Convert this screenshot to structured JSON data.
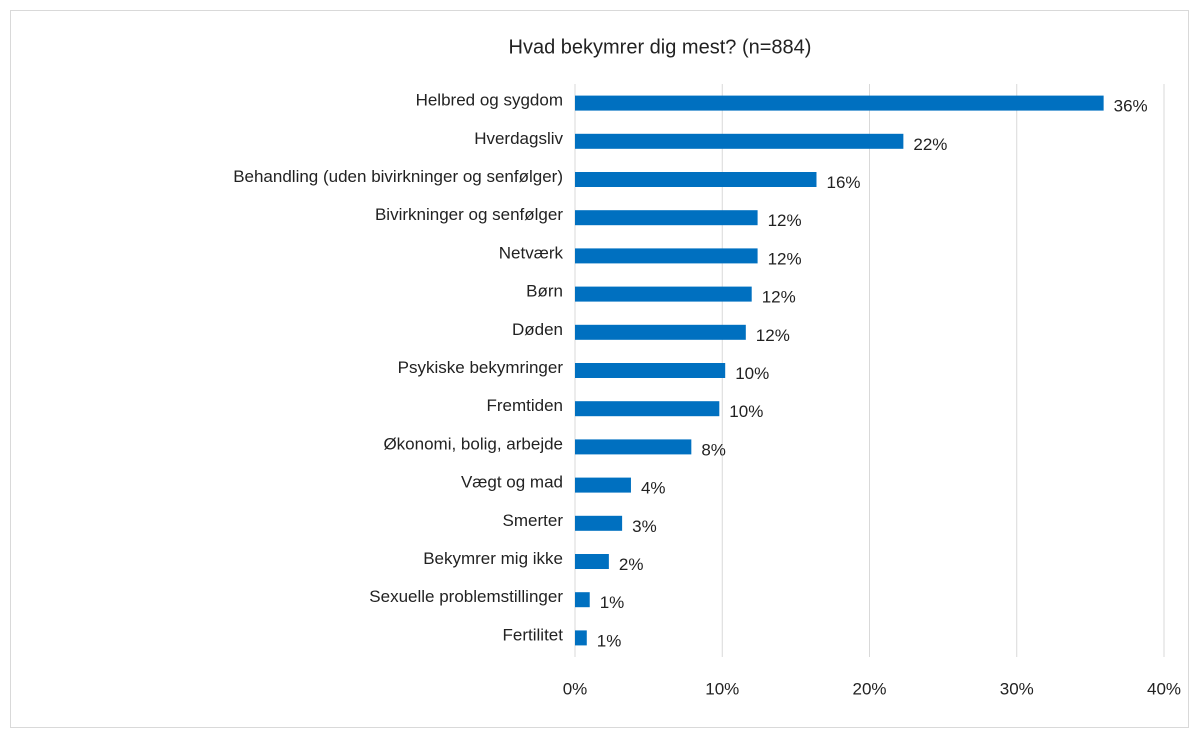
{
  "chart_data": {
    "type": "bar",
    "orientation": "horizontal",
    "title": "Hvad bekymrer dig mest? (n=884)",
    "categories": [
      "Helbred og sygdom",
      "Hverdagsliv",
      "Behandling (uden bivirkninger og senfølger)",
      "Bivirkninger og senfølger",
      "Netværk",
      "Børn",
      "Døden",
      "Psykiske bekymringer",
      "Fremtiden",
      "Økonomi, bolig, arbejde",
      "Vægt og mad",
      "Smerter",
      "Bekymrer mig ikke",
      "Sexuelle problemstillinger",
      "Fertilitet"
    ],
    "values": [
      35.9,
      22.3,
      16.4,
      12.4,
      12.4,
      12.0,
      11.6,
      10.2,
      9.8,
      7.9,
      3.8,
      3.2,
      2.3,
      1.0,
      0.8
    ],
    "value_labels": [
      "36%",
      "22%",
      "16%",
      "12%",
      "12%",
      "12%",
      "12%",
      "10%",
      "10%",
      "8%",
      "4%",
      "3%",
      "2%",
      "1%",
      "1%"
    ],
    "color": "#0070c0",
    "xlim": [
      0,
      40
    ],
    "xticks": [
      {
        "value": 0,
        "label": "0%"
      },
      {
        "value": 10,
        "label": "10%"
      },
      {
        "value": 20,
        "label": "20%"
      },
      {
        "value": 30,
        "label": "30%"
      },
      {
        "value": 40,
        "label": "40%"
      }
    ],
    "grid": true
  }
}
